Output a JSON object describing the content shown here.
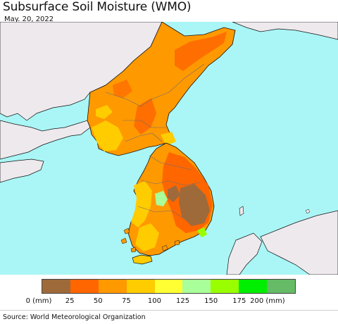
{
  "header": {
    "title": "Subsurface Soil Moisture (WMO)",
    "date": "May. 20, 2022"
  },
  "map": {
    "colors": {
      "sea": "#aaf6f6",
      "land_other": "#ede9ed",
      "border": "#6e6e6e",
      "coast": "#111111"
    }
  },
  "legend": {
    "colors": [
      "#9e6a3a",
      "#ff6600",
      "#ff9900",
      "#ffcc00",
      "#ffff33",
      "#a9ff99",
      "#99ff00",
      "#00ee00",
      "#66bb66"
    ],
    "labels": [
      "0 (mm)",
      "25",
      "50",
      "75",
      "100",
      "125",
      "150",
      "175",
      "200 (mm)"
    ]
  },
  "footer": {
    "source": "Source: World Meteorological Organization"
  }
}
